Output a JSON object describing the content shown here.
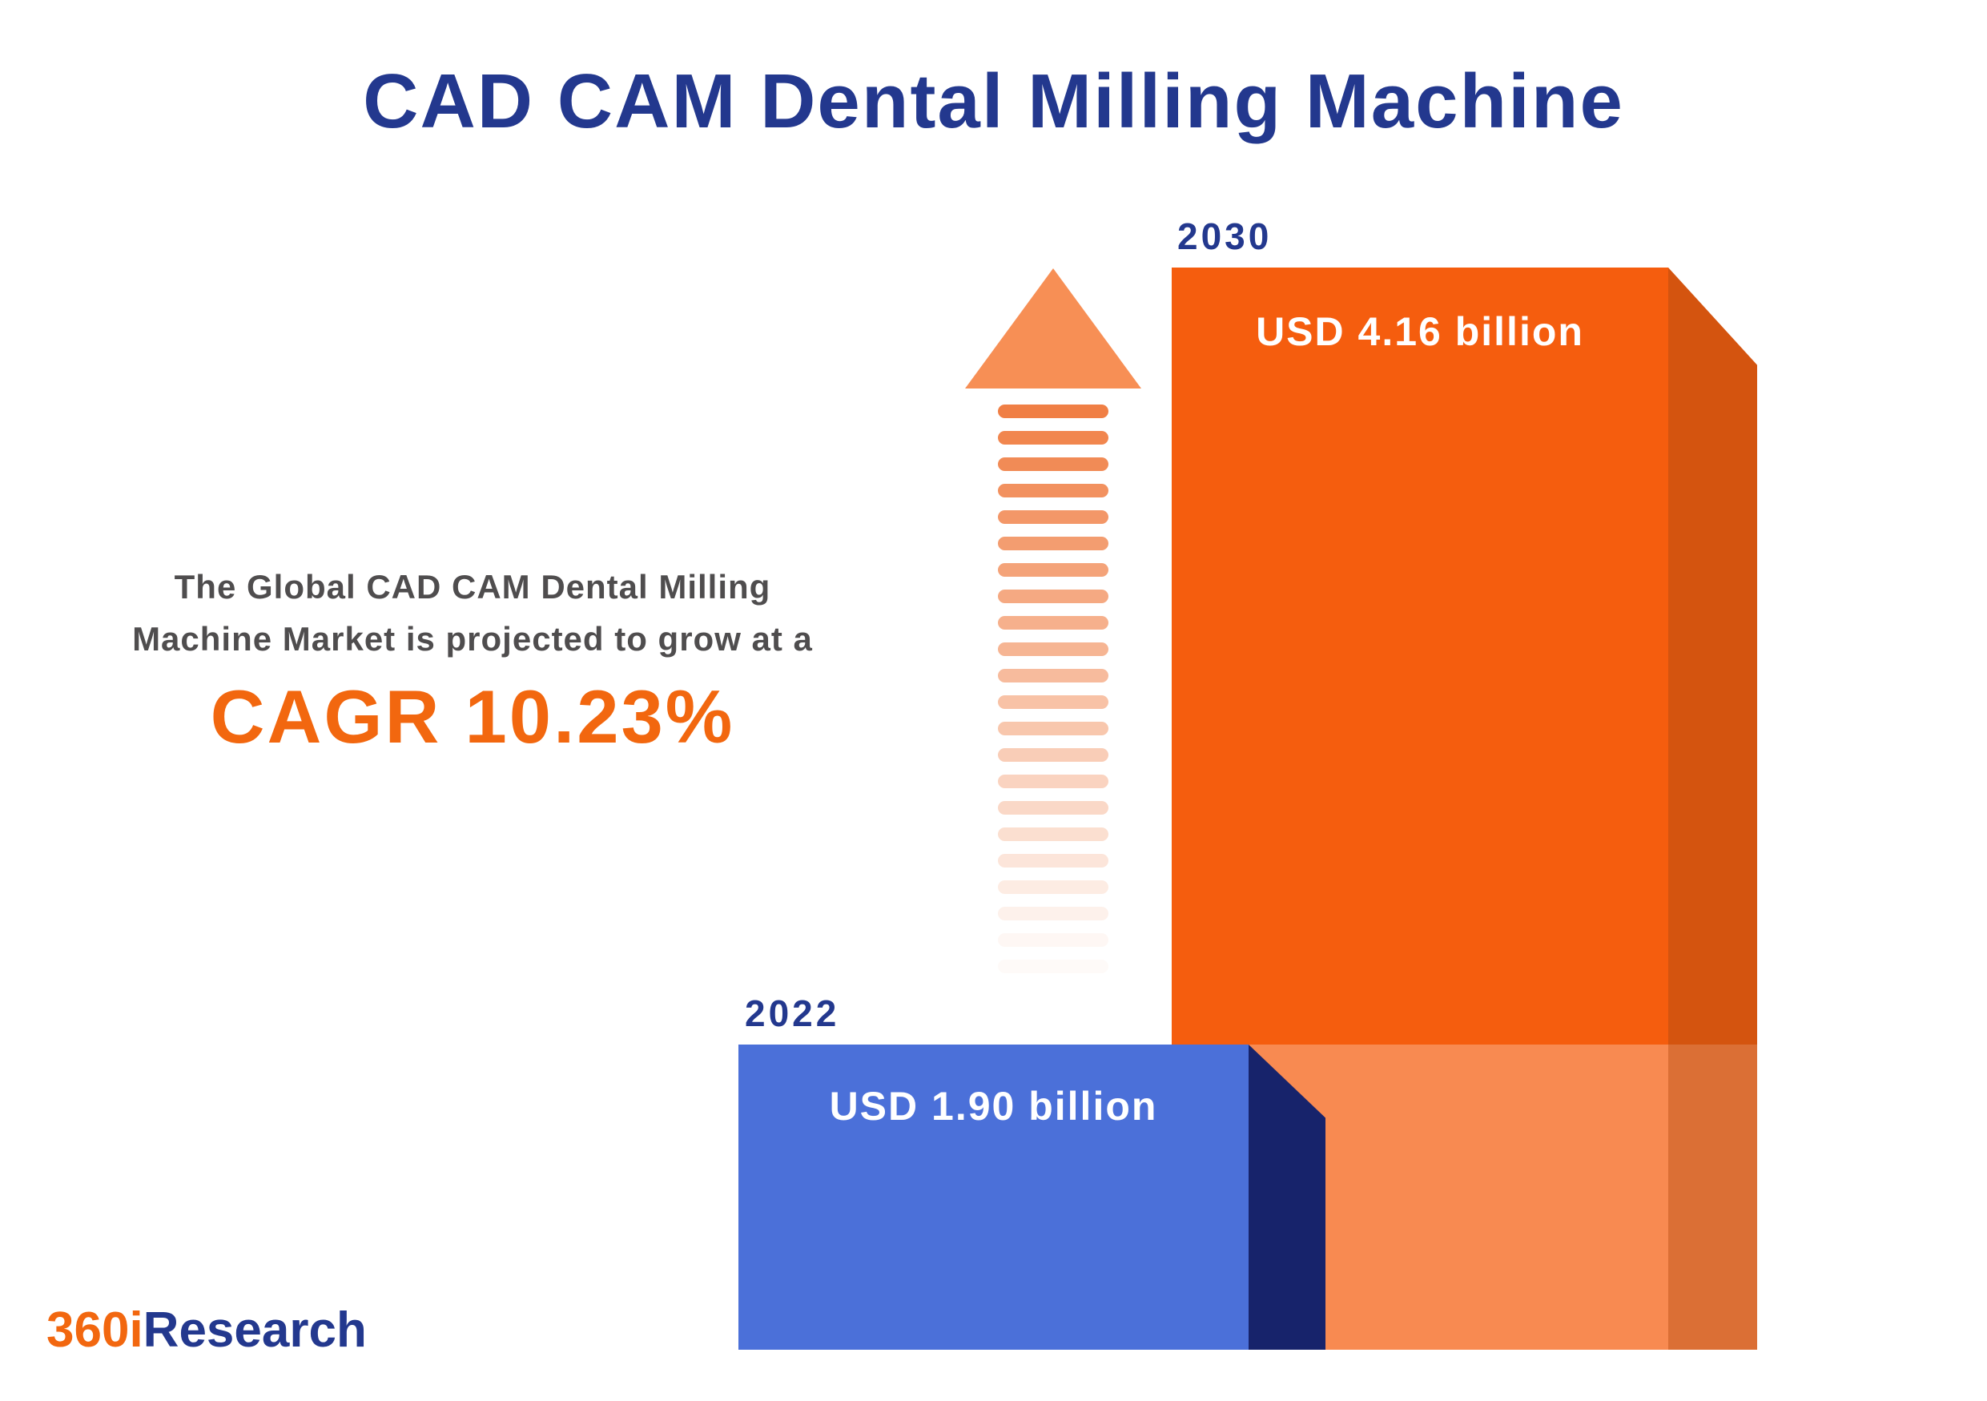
{
  "title": "CAD CAM Dental Milling Machine",
  "description": {
    "line1": "The Global CAD CAM Dental Milling",
    "line2": "Machine Market is projected to grow at a",
    "cagr": "CAGR 10.23%"
  },
  "logo": {
    "prefix": "360i",
    "suffix": "Research"
  },
  "colors": {
    "title_navy": "#23388e",
    "accent_orange": "#f2670f",
    "bar_2030_front": "#f55d0e",
    "bar_2030_side": "#d4540f",
    "bar_2022_front": "#4b70d9",
    "bar_2022_side": "#17236b",
    "arrow_orange": "#f07f45",
    "description_gray": "#4f4d4e",
    "value_text": "#ffffff"
  },
  "chart_data": {
    "type": "bar",
    "title": "CAD CAM Dental Milling Machine",
    "categories": [
      "2022",
      "2030"
    ],
    "values": [
      1.9,
      4.16
    ],
    "unit": "USD billion",
    "value_labels": [
      "USD 1.90 billion",
      "USD 4.16 billion"
    ],
    "series_colors": [
      "#4b70d9",
      "#f55d0e"
    ],
    "cagr_percent": 10.23,
    "annotation": "The Global CAD CAM Dental Milling Machine Market is projected to grow at a CAGR 10.23%",
    "legend": "none",
    "grid": false,
    "style": "3d-infographic-bars-with-growth-arrow"
  }
}
